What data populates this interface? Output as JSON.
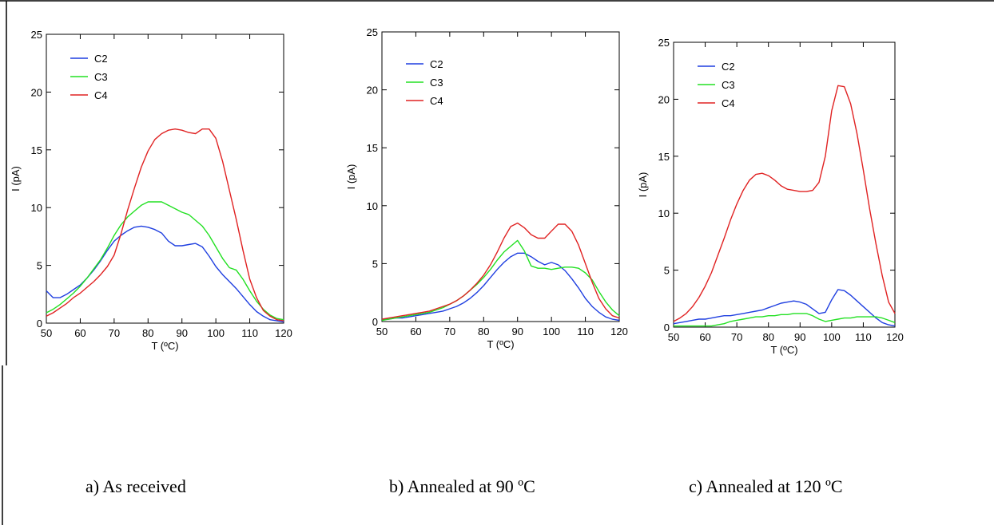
{
  "captions": [
    "a) As received",
    "b)  Annealed at 90 ºC",
    "c) Annealed at 120 ºC"
  ],
  "colors": {
    "C2": "#1f3fe0",
    "C3": "#22e022",
    "C4": "#e02222"
  },
  "chart_data": [
    {
      "type": "line",
      "title": "",
      "xlabel": "T (ºC)",
      "ylabel": "I (pA)",
      "xlim": [
        50,
        120
      ],
      "ylim": [
        0,
        25
      ],
      "xticks": [
        50,
        60,
        70,
        80,
        90,
        100,
        110,
        120
      ],
      "yticks": [
        0,
        5,
        10,
        15,
        20,
        25
      ],
      "legend": "top-left",
      "grid": false,
      "series": [
        {
          "name": "C2",
          "x": [
            50,
            52,
            54,
            56,
            58,
            60,
            62,
            64,
            66,
            68,
            70,
            72,
            74,
            76,
            78,
            80,
            82,
            84,
            86,
            88,
            90,
            92,
            94,
            96,
            98,
            100,
            102,
            104,
            106,
            108,
            110,
            112,
            114,
            116,
            118,
            120
          ],
          "y": [
            2.8,
            2.2,
            2.2,
            2.5,
            2.9,
            3.3,
            3.9,
            4.6,
            5.4,
            6.3,
            7.1,
            7.6,
            8.0,
            8.3,
            8.4,
            8.3,
            8.1,
            7.8,
            7.1,
            6.7,
            6.7,
            6.8,
            6.9,
            6.6,
            5.8,
            4.9,
            4.2,
            3.6,
            3.0,
            2.3,
            1.6,
            1.0,
            0.6,
            0.3,
            0.2,
            0.1
          ]
        },
        {
          "name": "C3",
          "x": [
            50,
            52,
            54,
            56,
            58,
            60,
            62,
            64,
            66,
            68,
            70,
            72,
            74,
            76,
            78,
            80,
            82,
            84,
            86,
            88,
            90,
            92,
            94,
            96,
            98,
            100,
            102,
            104,
            106,
            108,
            110,
            112,
            114,
            116,
            118,
            120
          ],
          "y": [
            0.9,
            1.2,
            1.6,
            2.1,
            2.6,
            3.2,
            3.9,
            4.7,
            5.5,
            6.5,
            7.6,
            8.5,
            9.2,
            9.7,
            10.2,
            10.5,
            10.5,
            10.5,
            10.2,
            9.9,
            9.6,
            9.4,
            8.9,
            8.4,
            7.6,
            6.6,
            5.6,
            4.8,
            4.6,
            3.8,
            2.8,
            1.9,
            1.2,
            0.7,
            0.4,
            0.3
          ]
        },
        {
          "name": "C4",
          "x": [
            50,
            52,
            54,
            56,
            58,
            60,
            62,
            64,
            66,
            68,
            70,
            72,
            74,
            76,
            78,
            80,
            82,
            84,
            86,
            88,
            90,
            92,
            94,
            96,
            98,
            100,
            102,
            104,
            106,
            108,
            110,
            112,
            114,
            116,
            118,
            120
          ],
          "y": [
            0.6,
            0.9,
            1.3,
            1.7,
            2.2,
            2.6,
            3.1,
            3.6,
            4.2,
            4.9,
            5.9,
            7.7,
            9.8,
            11.7,
            13.5,
            14.9,
            15.9,
            16.4,
            16.7,
            16.8,
            16.7,
            16.5,
            16.4,
            16.8,
            16.8,
            16.0,
            14.0,
            11.5,
            9.0,
            6.3,
            3.8,
            2.2,
            1.1,
            0.6,
            0.3,
            0.2
          ]
        }
      ]
    },
    {
      "type": "line",
      "title": "",
      "xlabel": "T (ºC)",
      "ylabel": "I (pA)",
      "xlim": [
        50,
        120
      ],
      "ylim": [
        0,
        25
      ],
      "xticks": [
        50,
        60,
        70,
        80,
        90,
        100,
        110,
        120
      ],
      "yticks": [
        0,
        5,
        10,
        15,
        20,
        25
      ],
      "legend": "top-left",
      "grid": false,
      "series": [
        {
          "name": "C2",
          "x": [
            50,
            52,
            54,
            56,
            58,
            60,
            62,
            64,
            66,
            68,
            70,
            72,
            74,
            76,
            78,
            80,
            82,
            84,
            86,
            88,
            90,
            92,
            94,
            96,
            98,
            100,
            102,
            104,
            106,
            108,
            110,
            112,
            114,
            116,
            118,
            120
          ],
          "y": [
            0.2,
            0.2,
            0.3,
            0.3,
            0.4,
            0.5,
            0.6,
            0.7,
            0.8,
            0.9,
            1.1,
            1.3,
            1.6,
            2.0,
            2.5,
            3.1,
            3.8,
            4.5,
            5.1,
            5.6,
            5.9,
            5.9,
            5.6,
            5.2,
            4.9,
            5.1,
            4.9,
            4.4,
            3.7,
            2.9,
            2.0,
            1.3,
            0.8,
            0.4,
            0.2,
            0.1
          ]
        },
        {
          "name": "C3",
          "x": [
            50,
            52,
            54,
            56,
            58,
            60,
            62,
            64,
            66,
            68,
            70,
            72,
            74,
            76,
            78,
            80,
            82,
            84,
            86,
            88,
            90,
            92,
            94,
            96,
            98,
            100,
            102,
            104,
            106,
            108,
            110,
            112,
            114,
            116,
            118,
            120
          ],
          "y": [
            0.1,
            0.2,
            0.3,
            0.4,
            0.5,
            0.6,
            0.7,
            0.8,
            1.0,
            1.2,
            1.5,
            1.8,
            2.2,
            2.7,
            3.2,
            3.8,
            4.5,
            5.3,
            6.0,
            6.5,
            7.0,
            6.1,
            4.8,
            4.6,
            4.6,
            4.5,
            4.6,
            4.7,
            4.7,
            4.6,
            4.2,
            3.6,
            2.6,
            1.7,
            1.0,
            0.5
          ]
        },
        {
          "name": "C4",
          "x": [
            50,
            52,
            54,
            56,
            58,
            60,
            62,
            64,
            66,
            68,
            70,
            72,
            74,
            76,
            78,
            80,
            82,
            84,
            86,
            88,
            90,
            92,
            94,
            96,
            98,
            100,
            102,
            104,
            106,
            108,
            110,
            112,
            114,
            116,
            118,
            120
          ],
          "y": [
            0.2,
            0.3,
            0.4,
            0.5,
            0.6,
            0.7,
            0.8,
            0.9,
            1.1,
            1.3,
            1.5,
            1.8,
            2.2,
            2.7,
            3.3,
            4.0,
            4.9,
            6.0,
            7.2,
            8.2,
            8.5,
            8.1,
            7.5,
            7.2,
            7.2,
            7.8,
            8.4,
            8.4,
            7.8,
            6.6,
            5.0,
            3.4,
            2.0,
            1.1,
            0.5,
            0.3
          ]
        }
      ]
    },
    {
      "type": "line",
      "title": "",
      "xlabel": "T (ºC)",
      "ylabel": "I (pA)",
      "xlim": [
        50,
        120
      ],
      "ylim": [
        0,
        25
      ],
      "xticks": [
        50,
        60,
        70,
        80,
        90,
        100,
        110,
        120
      ],
      "yticks": [
        0,
        5,
        10,
        15,
        20,
        25
      ],
      "legend": "top-left",
      "grid": false,
      "series": [
        {
          "name": "C2",
          "x": [
            50,
            52,
            54,
            56,
            58,
            60,
            62,
            64,
            66,
            68,
            70,
            72,
            74,
            76,
            78,
            80,
            82,
            84,
            86,
            88,
            90,
            92,
            94,
            96,
            98,
            100,
            102,
            104,
            106,
            108,
            110,
            112,
            114,
            116,
            118,
            120
          ],
          "y": [
            0.3,
            0.4,
            0.5,
            0.6,
            0.7,
            0.7,
            0.8,
            0.9,
            1.0,
            1.0,
            1.1,
            1.2,
            1.3,
            1.4,
            1.5,
            1.7,
            1.9,
            2.1,
            2.2,
            2.3,
            2.2,
            2.0,
            1.6,
            1.2,
            1.3,
            2.4,
            3.3,
            3.2,
            2.8,
            2.3,
            1.8,
            1.3,
            0.8,
            0.4,
            0.2,
            0.1
          ]
        },
        {
          "name": "C3",
          "x": [
            50,
            52,
            54,
            56,
            58,
            60,
            62,
            64,
            66,
            68,
            70,
            72,
            74,
            76,
            78,
            80,
            82,
            84,
            86,
            88,
            90,
            92,
            94,
            96,
            98,
            100,
            102,
            104,
            106,
            108,
            110,
            112,
            114,
            116,
            118,
            120
          ],
          "y": [
            0.1,
            0.1,
            0.1,
            0.1,
            0.1,
            0.1,
            0.1,
            0.2,
            0.3,
            0.5,
            0.6,
            0.7,
            0.8,
            0.9,
            0.9,
            1.0,
            1.0,
            1.1,
            1.1,
            1.2,
            1.2,
            1.2,
            1.0,
            0.7,
            0.5,
            0.6,
            0.7,
            0.8,
            0.8,
            0.9,
            0.9,
            0.9,
            0.9,
            0.8,
            0.6,
            0.4
          ]
        },
        {
          "name": "C4",
          "x": [
            50,
            52,
            54,
            56,
            58,
            60,
            62,
            64,
            66,
            68,
            70,
            72,
            74,
            76,
            78,
            80,
            82,
            84,
            86,
            88,
            90,
            92,
            94,
            96,
            98,
            100,
            102,
            104,
            106,
            108,
            110,
            112,
            114,
            116,
            118,
            120
          ],
          "y": [
            0.5,
            0.8,
            1.2,
            1.8,
            2.6,
            3.6,
            4.8,
            6.3,
            7.8,
            9.4,
            10.8,
            12.0,
            12.9,
            13.4,
            13.5,
            13.3,
            12.9,
            12.4,
            12.1,
            12.0,
            11.9,
            11.9,
            12.0,
            12.7,
            15.0,
            19.0,
            21.2,
            21.1,
            19.6,
            17.0,
            13.8,
            10.4,
            7.3,
            4.5,
            2.2,
            1.2
          ]
        }
      ]
    }
  ]
}
